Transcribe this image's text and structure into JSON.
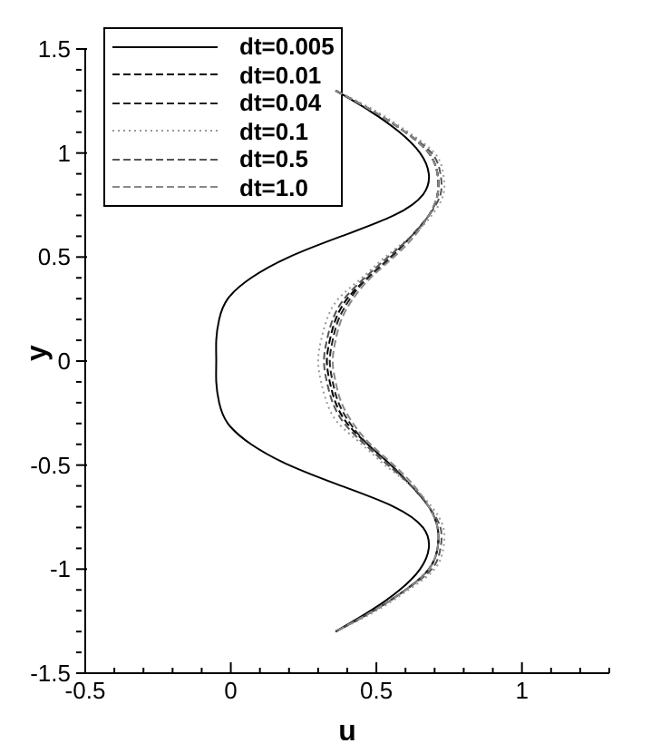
{
  "chart_data": {
    "type": "line",
    "xlabel": "u",
    "ylabel": "y",
    "xlim": [
      -0.5,
      1.3
    ],
    "ylim": [
      -1.5,
      1.5
    ],
    "xticks": [
      -0.5,
      {
        "value": -0.4,
        "label": null
      },
      {
        "value": -0.3,
        "label": null
      },
      {
        "value": -0.2,
        "label": null
      },
      {
        "value": -0.1,
        "label": null
      },
      0,
      {
        "value": 0.1,
        "label": null
      },
      {
        "value": 0.2,
        "label": null
      },
      {
        "value": 0.3,
        "label": null
      },
      {
        "value": 0.4,
        "label": null
      },
      0.5,
      {
        "value": 0.6,
        "label": null
      },
      {
        "value": 0.7,
        "label": null
      },
      {
        "value": 0.8,
        "label": null
      },
      {
        "value": 0.9,
        "label": null
      },
      1,
      {
        "value": 1.1,
        "label": null
      },
      {
        "value": 1.2,
        "label": null
      },
      {
        "value": 1.3,
        "label": null
      }
    ],
    "yticks": [
      -1.5,
      {
        "value": -1.4,
        "label": null
      },
      {
        "value": -1.3,
        "label": null
      },
      {
        "value": -1.2,
        "label": null
      },
      {
        "value": -1.1,
        "label": null
      },
      -1,
      {
        "value": -0.9,
        "label": null
      },
      {
        "value": -0.8,
        "label": null
      },
      {
        "value": -0.7,
        "label": null
      },
      {
        "value": -0.6,
        "label": null
      },
      -0.5,
      {
        "value": -0.4,
        "label": null
      },
      {
        "value": -0.3,
        "label": null
      },
      {
        "value": -0.2,
        "label": null
      },
      {
        "value": -0.1,
        "label": null
      },
      0,
      {
        "value": 0.1,
        "label": null
      },
      {
        "value": 0.2,
        "label": null
      },
      {
        "value": 0.3,
        "label": null
      },
      {
        "value": 0.4,
        "label": null
      },
      0.5,
      {
        "value": 0.6,
        "label": null
      },
      {
        "value": 0.7,
        "label": null
      },
      {
        "value": 0.8,
        "label": null
      },
      {
        "value": 0.9,
        "label": null
      },
      1,
      {
        "value": 1.1,
        "label": null
      },
      {
        "value": 1.2,
        "label": null
      },
      {
        "value": 1.3,
        "label": null
      },
      {
        "value": 1.4,
        "label": null
      },
      1.5
    ],
    "legend": "top left",
    "grid": false,
    "marker": "none",
    "series": [
      {
        "name": "dt=0.005",
        "color": "#000000",
        "line_style": "solid",
        "x": [
          0.36,
          0.48,
          0.58,
          0.65,
          0.68,
          0.66,
          0.56,
          0.38,
          0.2,
          0.07,
          -0.01,
          -0.04,
          -0.05,
          -0.05,
          -0.05,
          -0.04,
          -0.01,
          0.07,
          0.2,
          0.38,
          0.56,
          0.66,
          0.68,
          0.65,
          0.58,
          0.48,
          0.36
        ],
        "values": [
          1.3,
          1.2,
          1.1,
          1.0,
          0.9,
          0.8,
          0.7,
          0.6,
          0.5,
          0.4,
          0.3,
          0.2,
          0.1,
          0,
          -0.1,
          -0.2,
          -0.3,
          -0.4,
          -0.5,
          -0.6,
          -0.7,
          -0.8,
          -0.9,
          -1.0,
          -1.1,
          -1.2,
          -1.3
        ]
      },
      {
        "name": "dt=0.01",
        "color": "#000000",
        "line_style": "dashed",
        "x": [
          0.36,
          0.49,
          0.6,
          0.68,
          0.71,
          0.71,
          0.68,
          0.62,
          0.55,
          0.47,
          0.4,
          0.36,
          0.34,
          0.33,
          0.34,
          0.36,
          0.4,
          0.47,
          0.55,
          0.62,
          0.68,
          0.71,
          0.71,
          0.68,
          0.6,
          0.49,
          0.36
        ],
        "values": [
          1.3,
          1.2,
          1.1,
          1.0,
          0.9,
          0.8,
          0.7,
          0.6,
          0.5,
          0.4,
          0.3,
          0.2,
          0.1,
          0,
          -0.1,
          -0.2,
          -0.3,
          -0.4,
          -0.5,
          -0.6,
          -0.7,
          -0.8,
          -0.9,
          -1.0,
          -1.1,
          -1.2,
          -1.3
        ]
      },
      {
        "name": "dt=0.04",
        "color": "#222222",
        "line_style": "dashed",
        "x": [
          0.36,
          0.49,
          0.6,
          0.68,
          0.71,
          0.71,
          0.68,
          0.62,
          0.55,
          0.47,
          0.41,
          0.37,
          0.35,
          0.34,
          0.35,
          0.37,
          0.41,
          0.47,
          0.55,
          0.62,
          0.68,
          0.71,
          0.71,
          0.68,
          0.6,
          0.49,
          0.36
        ],
        "values": [
          1.3,
          1.2,
          1.1,
          1.0,
          0.9,
          0.8,
          0.7,
          0.6,
          0.5,
          0.4,
          0.3,
          0.2,
          0.1,
          0,
          -0.1,
          -0.2,
          -0.3,
          -0.4,
          -0.5,
          -0.6,
          -0.7,
          -0.8,
          -0.9,
          -1.0,
          -1.1,
          -1.2,
          -1.3
        ]
      },
      {
        "name": "dt=0.1",
        "color": "#999999",
        "line_style": "dotted",
        "x": [
          0.36,
          0.5,
          0.61,
          0.7,
          0.73,
          0.73,
          0.69,
          0.62,
          0.53,
          0.45,
          0.37,
          0.33,
          0.31,
          0.3,
          0.31,
          0.33,
          0.37,
          0.45,
          0.53,
          0.62,
          0.69,
          0.73,
          0.73,
          0.7,
          0.61,
          0.5,
          0.36
        ],
        "values": [
          1.3,
          1.2,
          1.1,
          1.0,
          0.9,
          0.8,
          0.7,
          0.6,
          0.5,
          0.4,
          0.3,
          0.2,
          0.1,
          0,
          -0.1,
          -0.2,
          -0.3,
          -0.4,
          -0.5,
          -0.6,
          -0.7,
          -0.8,
          -0.9,
          -1.0,
          -1.1,
          -1.2,
          -1.3
        ]
      },
      {
        "name": "dt=0.5",
        "color": "#555555",
        "line_style": "dashed",
        "x": [
          0.36,
          0.49,
          0.6,
          0.69,
          0.72,
          0.72,
          0.68,
          0.62,
          0.54,
          0.46,
          0.39,
          0.35,
          0.33,
          0.32,
          0.33,
          0.35,
          0.39,
          0.46,
          0.54,
          0.62,
          0.68,
          0.72,
          0.72,
          0.69,
          0.6,
          0.49,
          0.36
        ],
        "values": [
          1.3,
          1.2,
          1.1,
          1.0,
          0.9,
          0.8,
          0.7,
          0.6,
          0.5,
          0.4,
          0.3,
          0.2,
          0.1,
          0,
          -0.1,
          -0.2,
          -0.3,
          -0.4,
          -0.5,
          -0.6,
          -0.7,
          -0.8,
          -0.9,
          -1.0,
          -1.1,
          -1.2,
          -1.3
        ]
      },
      {
        "name": "dt=1.0",
        "color": "#888888",
        "line_style": "dashed",
        "x": [
          0.36,
          0.49,
          0.6,
          0.68,
          0.71,
          0.71,
          0.68,
          0.63,
          0.56,
          0.48,
          0.42,
          0.38,
          0.36,
          0.35,
          0.36,
          0.38,
          0.42,
          0.48,
          0.56,
          0.63,
          0.68,
          0.71,
          0.71,
          0.68,
          0.6,
          0.49,
          0.36
        ],
        "values": [
          1.3,
          1.2,
          1.1,
          1.0,
          0.9,
          0.8,
          0.7,
          0.6,
          0.5,
          0.4,
          0.3,
          0.2,
          0.1,
          0,
          -0.1,
          -0.2,
          -0.3,
          -0.4,
          -0.5,
          -0.6,
          -0.7,
          -0.8,
          -0.9,
          -1.0,
          -1.1,
          -1.2,
          -1.3
        ]
      }
    ]
  }
}
